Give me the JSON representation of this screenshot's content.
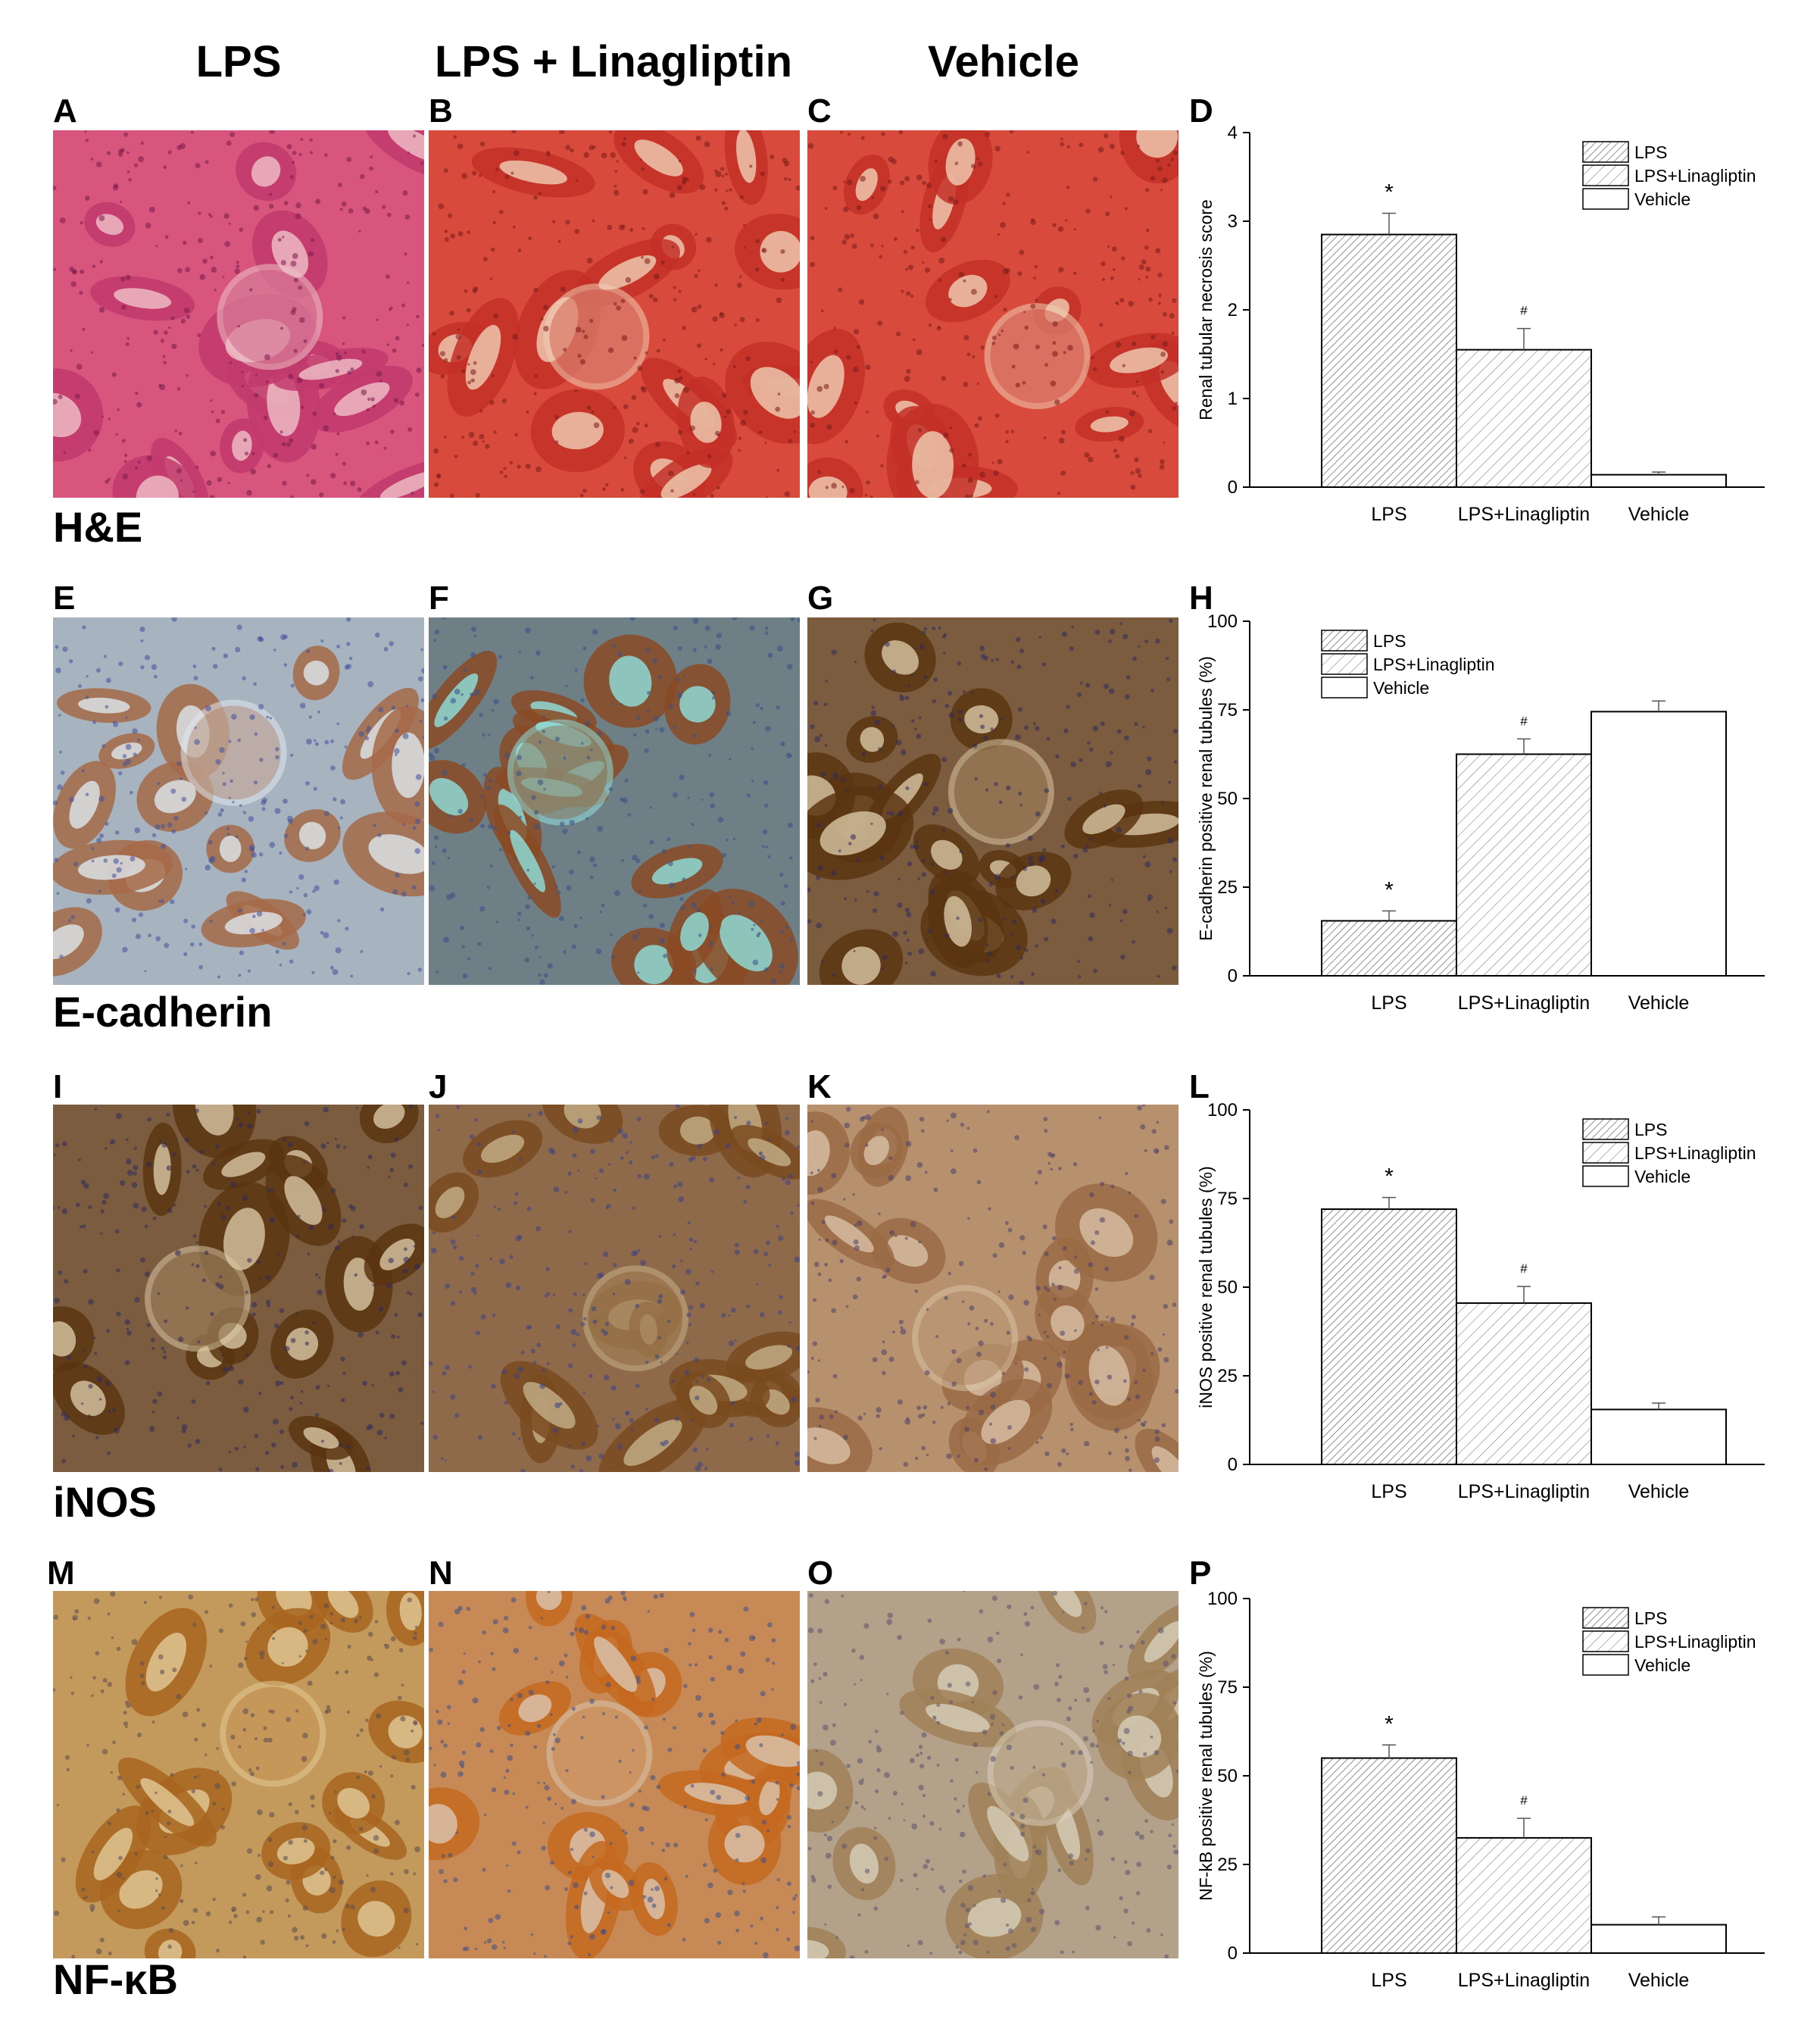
{
  "columns": [
    "LPS",
    "LPS + Linagliptin",
    "Vehicle"
  ],
  "row_labels": [
    "H&E",
    "E-cadherin",
    "iNOS",
    "NF-κB"
  ],
  "panel_letters": [
    "A",
    "B",
    "C",
    "D",
    "E",
    "F",
    "G",
    "H",
    "I",
    "J",
    "K",
    "L",
    "M",
    "N",
    "O",
    "P"
  ],
  "micrographs": [
    {
      "panel": "A",
      "stain": "H&E",
      "group": "LPS",
      "palette": "he_pink"
    },
    {
      "panel": "B",
      "stain": "H&E",
      "group": "LPS + Linagliptin",
      "palette": "he_red"
    },
    {
      "panel": "C",
      "stain": "H&E",
      "group": "Vehicle",
      "palette": "he_red"
    },
    {
      "panel": "E",
      "stain": "E-cadherin",
      "group": "LPS",
      "palette": "ihc_light"
    },
    {
      "panel": "F",
      "stain": "E-cadherin",
      "group": "LPS + Linagliptin",
      "palette": "ihc_teal"
    },
    {
      "panel": "G",
      "stain": "E-cadherin",
      "group": "Vehicle",
      "palette": "ihc_dark"
    },
    {
      "panel": "I",
      "stain": "iNOS",
      "group": "LPS",
      "palette": "ihc_dark"
    },
    {
      "panel": "J",
      "stain": "iNOS",
      "group": "LPS + Linagliptin",
      "palette": "ihc_mid"
    },
    {
      "panel": "K",
      "stain": "iNOS",
      "group": "Vehicle",
      "palette": "ihc_faint"
    },
    {
      "panel": "M",
      "stain": "NF-κB",
      "group": "LPS",
      "palette": "ihc_amber"
    },
    {
      "panel": "N",
      "stain": "NF-κB",
      "group": "LPS + Linagliptin",
      "palette": "ihc_orange"
    },
    {
      "panel": "O",
      "stain": "NF-κB",
      "group": "Vehicle",
      "palette": "ihc_grey"
    }
  ],
  "chart_data": [
    {
      "panel": "D",
      "type": "bar",
      "categories": [
        "LPS",
        "LPS+Linagliptin",
        "Vehicle"
      ],
      "values": [
        2.85,
        1.55,
        0.14
      ],
      "errors": [
        0.24,
        0.24,
        0.03
      ],
      "annotations": [
        "*",
        "#",
        ""
      ],
      "ylabel": "Renal tubular necrosis score",
      "ylim": [
        0,
        4
      ],
      "yticks": [
        0,
        1,
        2,
        3,
        4
      ],
      "legend": [
        "LPS",
        "LPS+Linagliptin",
        "Vehicle"
      ],
      "legend_position": "top-right",
      "patterns": [
        "dense-hatch",
        "light-hatch",
        "none"
      ]
    },
    {
      "panel": "H",
      "type": "bar",
      "categories": [
        "LPS",
        "LPS+Linagliptin",
        "Vehicle"
      ],
      "values": [
        15.5,
        62.5,
        74.5
      ],
      "errors": [
        2.8,
        4.3,
        3.0
      ],
      "annotations": [
        "*",
        "#",
        ""
      ],
      "ylabel": "E-cadherin positive renal tubules (%)",
      "ylim": [
        0,
        100
      ],
      "yticks": [
        0,
        25,
        50,
        75,
        100
      ],
      "legend": [
        "LPS",
        "LPS+Linagliptin",
        "Vehicle"
      ],
      "legend_position": "top-left",
      "patterns": [
        "dense-hatch",
        "light-hatch",
        "none"
      ]
    },
    {
      "panel": "L",
      "type": "bar",
      "categories": [
        "LPS",
        "LPS+Linagliptin",
        "Vehicle"
      ],
      "values": [
        72,
        45.5,
        15.5
      ],
      "errors": [
        3.3,
        4.7,
        1.8
      ],
      "annotations": [
        "*",
        "#",
        ""
      ],
      "ylabel": "iNOS positive renal tubules (%)",
      "ylim": [
        0,
        100
      ],
      "yticks": [
        0,
        25,
        50,
        75,
        100
      ],
      "legend": [
        "LPS",
        "LPS+Linagliptin",
        "Vehicle"
      ],
      "legend_position": "top-right",
      "patterns": [
        "dense-hatch",
        "light-hatch",
        "none"
      ]
    },
    {
      "panel": "P",
      "type": "bar",
      "categories": [
        "LPS",
        "LPS+Linagliptin",
        "Vehicle"
      ],
      "values": [
        55,
        32.5,
        8
      ],
      "errors": [
        3.7,
        5.5,
        2.2
      ],
      "annotations": [
        "*",
        "#",
        ""
      ],
      "ylabel": "NF-kB positive renal tubules (%)",
      "ylim": [
        0,
        100
      ],
      "yticks": [
        0,
        25,
        50,
        75,
        100
      ],
      "legend": [
        "LPS",
        "LPS+Linagliptin",
        "Vehicle"
      ],
      "legend_position": "top-right",
      "patterns": [
        "dense-hatch",
        "light-hatch",
        "none"
      ]
    }
  ]
}
